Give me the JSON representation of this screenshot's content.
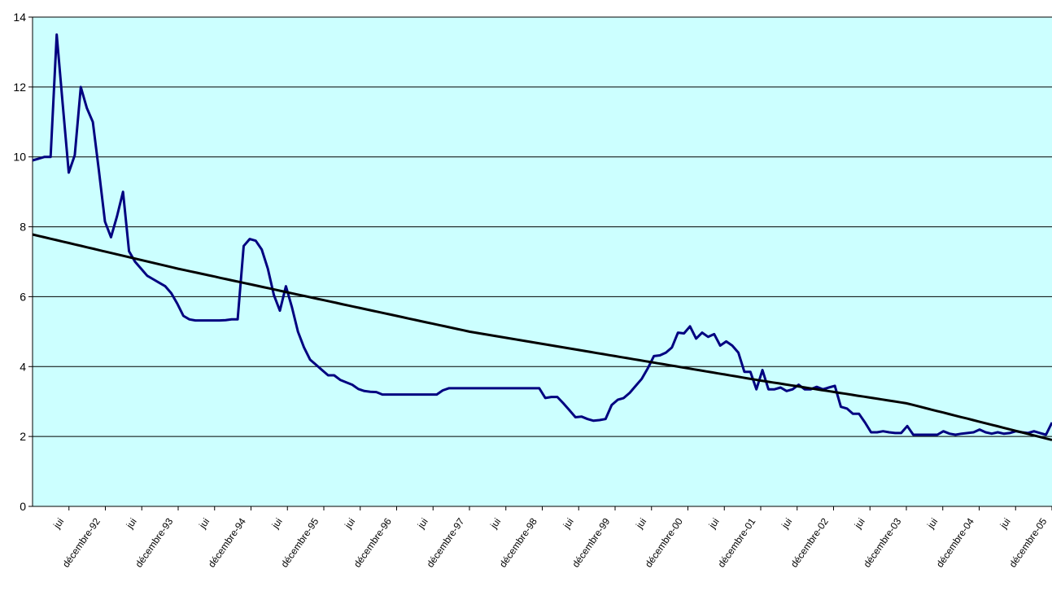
{
  "chart_data": {
    "type": "line",
    "title": "",
    "xlabel": "",
    "ylabel": "",
    "ylim": [
      0,
      14
    ],
    "yticks": [
      0,
      2,
      4,
      6,
      8,
      10,
      12,
      14
    ],
    "grid": true,
    "legend": "none",
    "colors": {
      "plot_background": "#ccffff",
      "series": "#000080",
      "trend": "#000000",
      "grid": "#000000"
    },
    "x_tick_labels": [
      "juin",
      "décembre-92",
      "juin",
      "décembre-93",
      "juin",
      "décembre-94",
      "juin",
      "décembre-95",
      "juin",
      "décembre-96",
      "juin",
      "décembre-97",
      "juin",
      "décembre-98",
      "juin",
      "décembre-99",
      "juin",
      "décembre-00",
      "juin",
      "décembre-01",
      "juin",
      "décembre-02",
      "juin",
      "décembre-03",
      "juin",
      "décembre-04",
      "juin",
      "décembre-05"
    ],
    "x_tick_display": [
      "jui",
      "décembre-92",
      "jui",
      "décembre-93",
      "jui",
      "décembre-94",
      "jui",
      "décembre-95",
      "jui",
      "décembre-96",
      "jui",
      "décembre-97",
      "jui",
      "décembre-98",
      "jui",
      "décembre-99",
      "jui",
      "décembre-00",
      "jui",
      "décembre-01",
      "jui",
      "décembre-02",
      "jui",
      "décembre-03",
      "jui",
      "décembre-04",
      "jui",
      "décembre-05"
    ],
    "x_start": "1992-01",
    "x_end": "2006-01",
    "series": [
      {
        "kind": "monthly",
        "values": [
          9.9,
          9.95,
          10.0,
          10.0,
          13.5,
          11.5,
          9.55,
          10.05,
          12.0,
          11.4,
          11.0,
          9.6,
          8.15,
          7.7,
          8.3,
          9.0,
          7.3,
          7.0,
          6.8,
          6.6,
          6.5,
          6.4,
          6.3,
          6.1,
          5.8,
          5.45,
          5.35,
          5.32,
          5.32,
          5.32,
          5.32,
          5.32,
          5.33,
          5.35,
          5.35,
          7.45,
          7.65,
          7.6,
          7.35,
          6.8,
          6.05,
          5.6,
          6.3,
          5.7,
          5.0,
          4.55,
          4.2,
          4.05,
          3.9,
          3.75,
          3.75,
          3.62,
          3.55,
          3.48,
          3.36,
          3.3,
          3.28,
          3.27,
          3.2,
          3.2,
          3.2,
          3.2,
          3.2,
          3.2,
          3.2,
          3.2,
          3.2,
          3.2,
          3.32,
          3.38,
          3.38,
          3.38,
          3.38,
          3.38,
          3.38,
          3.38,
          3.38,
          3.38,
          3.38,
          3.38,
          3.38,
          3.38,
          3.38,
          3.38,
          3.38,
          3.1,
          3.13,
          3.13,
          2.95,
          2.75,
          2.55,
          2.57,
          2.5,
          2.45,
          2.47,
          2.5,
          2.9,
          3.05,
          3.1,
          3.25,
          3.45,
          3.65,
          3.95,
          4.3,
          4.32,
          4.4,
          4.55,
          4.97,
          4.95,
          5.15,
          4.8,
          4.97,
          4.85,
          4.93,
          4.6,
          4.72,
          4.6,
          4.4,
          3.85,
          3.85,
          3.35,
          3.9,
          3.35,
          3.35,
          3.4,
          3.3,
          3.35,
          3.48,
          3.35,
          3.35,
          3.42,
          3.35,
          3.4,
          3.45,
          2.85,
          2.8,
          2.65,
          2.65,
          2.4,
          2.12,
          2.12,
          2.15,
          2.12,
          2.1,
          2.1,
          2.3,
          2.05,
          2.05,
          2.05,
          2.05,
          2.05,
          2.15,
          2.08,
          2.05,
          2.08,
          2.1,
          2.12,
          2.2,
          2.12,
          2.08,
          2.12,
          2.08,
          2.1,
          2.15,
          2.12,
          2.1,
          2.15,
          2.1,
          2.05,
          2.4
        ]
      },
      {
        "kind": "trend",
        "x": [
          "1992-01",
          "1994-01",
          "1996-01",
          "1998-01",
          "2000-01",
          "2002-01",
          "2004-01",
          "2006-01"
        ],
        "values": [
          7.78,
          6.8,
          5.9,
          5.0,
          4.3,
          3.6,
          2.95,
          1.9
        ]
      }
    ]
  }
}
